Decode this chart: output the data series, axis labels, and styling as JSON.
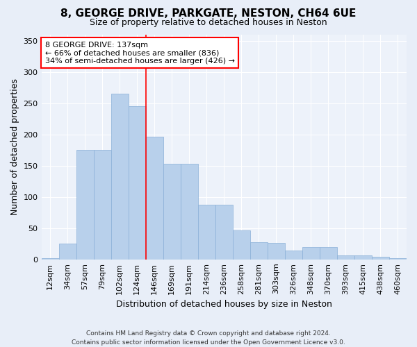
{
  "title": "8, GEORGE DRIVE, PARKGATE, NESTON, CH64 6UE",
  "subtitle": "Size of property relative to detached houses in Neston",
  "xlabel": "Distribution of detached houses by size in Neston",
  "ylabel": "Number of detached properties",
  "categories": [
    "12sqm",
    "34sqm",
    "57sqm",
    "79sqm",
    "102sqm",
    "124sqm",
    "146sqm",
    "169sqm",
    "191sqm",
    "214sqm",
    "236sqm",
    "258sqm",
    "281sqm",
    "303sqm",
    "326sqm",
    "348sqm",
    "370sqm",
    "393sqm",
    "415sqm",
    "438sqm",
    "460sqm"
  ],
  "bar_heights": [
    2,
    25,
    175,
    175,
    265,
    245,
    197,
    153,
    153,
    88,
    88,
    47,
    28,
    27,
    14,
    20,
    20,
    7,
    7,
    4,
    2
  ],
  "bar_color": "#b8d0eb",
  "bar_edge_color": "#8ab0d8",
  "vline_color": "red",
  "vline_x_index": 5.5,
  "annotation_text": "8 GEORGE DRIVE: 137sqm\n← 66% of detached houses are smaller (836)\n34% of semi-detached houses are larger (426) →",
  "ylim": [
    0,
    360
  ],
  "yticks": [
    0,
    50,
    100,
    150,
    200,
    250,
    300,
    350
  ],
  "footer": "Contains HM Land Registry data © Crown copyright and database right 2024.\nContains public sector information licensed under the Open Government Licence v3.0.",
  "bg_color": "#e8eef8",
  "plot_bg_color": "#edf2fa",
  "title_fontsize": 11,
  "subtitle_fontsize": 9,
  "ylabel_fontsize": 9,
  "xlabel_fontsize": 9,
  "tick_fontsize": 8,
  "annotation_fontsize": 8,
  "footer_fontsize": 6.5
}
